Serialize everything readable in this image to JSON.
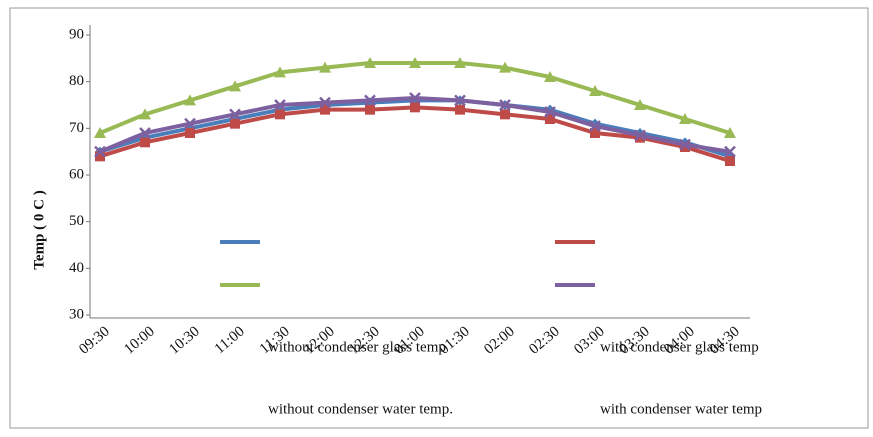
{
  "chart_data": {
    "type": "line",
    "y_label": "Temp ( 0 C )",
    "categories": [
      "09:30",
      "10:00",
      "10:30",
      "11:00",
      "11:30",
      "12:00",
      "12:30",
      "01:00",
      "01:30",
      "02:00",
      "02:30",
      "03:00",
      "03:30",
      "04:00",
      "04:30"
    ],
    "ylim": [
      30,
      90
    ],
    "yticks": [
      30,
      40,
      50,
      60,
      70,
      80,
      90
    ],
    "series": [
      {
        "name": "without condenser glass temp",
        "color": "#4a7ebb",
        "marker": "diamond",
        "values": [
          65,
          68,
          70,
          72,
          74,
          75,
          75.5,
          76,
          76,
          75,
          74,
          71,
          69,
          67,
          64
        ]
      },
      {
        "name": "with condenser glass temp",
        "color": "#be4b48",
        "marker": "square",
        "values": [
          64,
          67,
          69,
          71,
          73,
          74,
          74,
          74.5,
          74,
          73,
          72,
          69,
          68,
          66,
          63
        ]
      },
      {
        "name": "without condenser water temp.",
        "color": "#98b954",
        "marker": "triangle",
        "values": [
          69,
          73,
          76,
          79,
          82,
          83,
          84,
          84,
          84,
          83,
          81,
          78,
          75,
          72,
          69
        ]
      },
      {
        "name": "with condenser water temp",
        "color": "#7d60a0",
        "marker": "x",
        "values": [
          65,
          69,
          71,
          73,
          75,
          75.5,
          76,
          76.5,
          76,
          75,
          73.5,
          70.5,
          68.5,
          66.5,
          65
        ]
      }
    ]
  }
}
